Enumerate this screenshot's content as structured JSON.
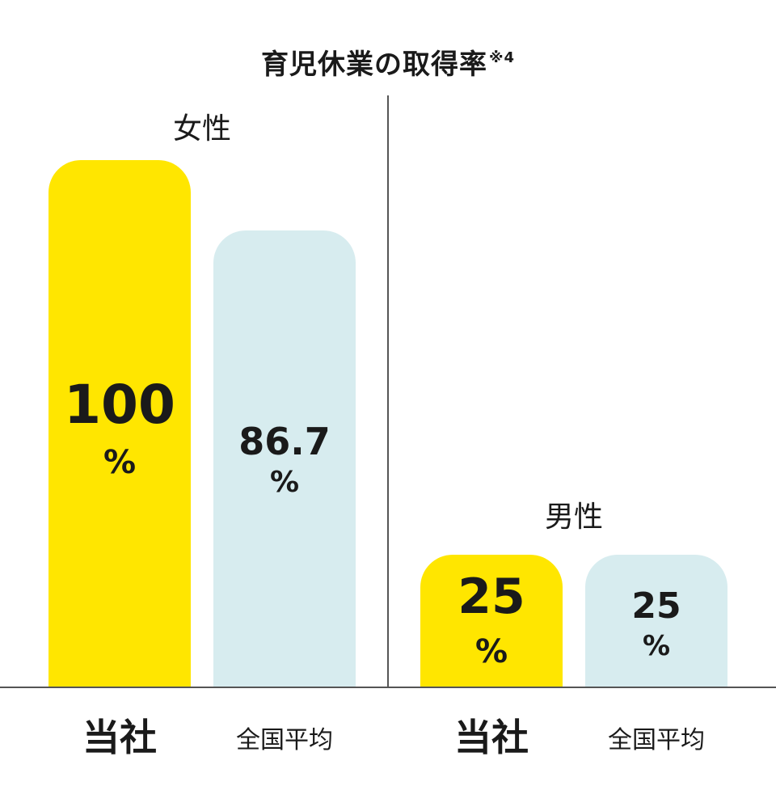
{
  "chart_data": {
    "type": "bar",
    "title": "育児休業の取得率",
    "title_note": "※4",
    "ylim": [
      0,
      100
    ],
    "grid": false,
    "unit": "%",
    "groups": [
      {
        "label": "女性",
        "bars": [
          {
            "category": "当社",
            "value": 100,
            "value_label": "100",
            "color": "#ffe600"
          },
          {
            "category": "全国平均",
            "value": 86.7,
            "value_label": "86.7",
            "color": "#d7ecef"
          }
        ]
      },
      {
        "label": "男性",
        "bars": [
          {
            "category": "当社",
            "value": 25,
            "value_label": "25",
            "color": "#ffe600"
          },
          {
            "category": "全国平均",
            "value": 25,
            "value_label": "25",
            "color": "#d7ecef"
          }
        ]
      }
    ]
  }
}
